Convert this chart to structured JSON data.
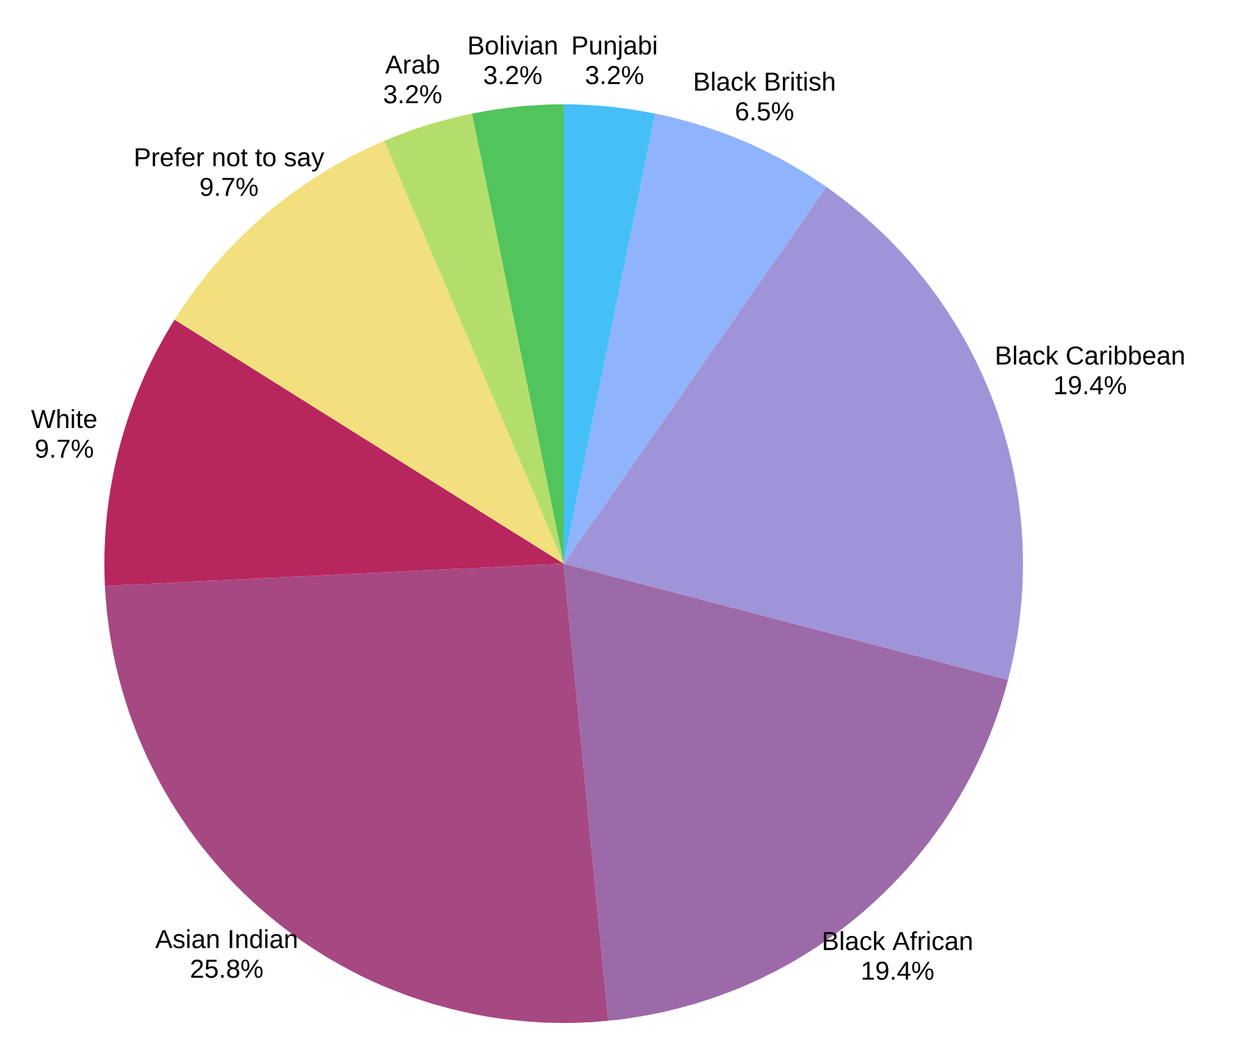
{
  "chart_data": {
    "type": "pie",
    "categories": [
      "Punjabi",
      "Black British",
      "Black Caribbean",
      "Black African",
      "Asian Indian",
      "White",
      "Prefer not to say",
      "Arab",
      "Bolivian"
    ],
    "values": [
      3.2,
      6.5,
      19.4,
      19.4,
      25.8,
      9.7,
      9.7,
      3.2,
      3.2
    ],
    "value_labels": [
      "3.2%",
      "6.5%",
      "19.4%",
      "19.4%",
      "25.8%",
      "9.7%",
      "9.7%",
      "3.2%",
      "3.2%"
    ],
    "colors": [
      "#45bff8",
      "#8fb4fc",
      "#a094d8",
      "#9c6aa8",
      "#a64882",
      "#b8265e",
      "#f2e07e",
      "#b4de6c",
      "#52c45c"
    ]
  }
}
